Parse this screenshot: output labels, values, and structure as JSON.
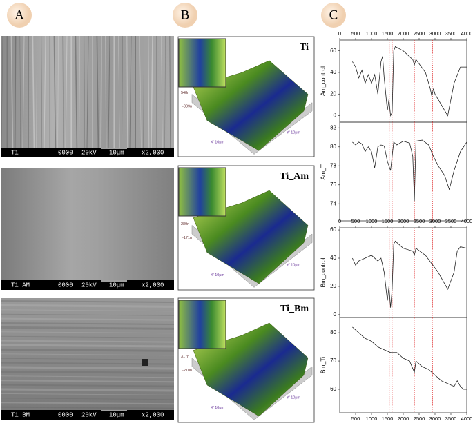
{
  "labels": [
    "A",
    "B",
    "C"
  ],
  "sem": [
    {
      "sample": "Ti",
      "code": "0000",
      "voltage": "20kV",
      "scale": "10μm",
      "magnification": "x2,000"
    },
    {
      "sample": "Ti AM",
      "code": "0000",
      "voltage": "20kV",
      "scale": "10μm",
      "magnification": "x2,000"
    },
    {
      "sample": "Ti BM",
      "code": "0000",
      "voltage": "20kV",
      "scale": "10μm",
      "magnification": "x2,000"
    }
  ],
  "afm": [
    {
      "title": "Ti",
      "z_max": "548n",
      "z_min": "-389n",
      "x_axis": "X' 10μm",
      "y_axis": "Y' 10μm"
    },
    {
      "title": "Ti_Am",
      "z_max": "289n",
      "z_min": "-171n",
      "x_axis": "X' 10μm",
      "y_axis": "Y' 10μm"
    },
    {
      "title": "Ti_Bm",
      "z_max": "317n",
      "z_min": "-210n",
      "x_axis": "X' 10μm",
      "y_axis": "Y' 10μm"
    }
  ],
  "chart_data": [
    {
      "type": "line",
      "y_label": "Am_control",
      "color": "#222222",
      "ref_color": "#e03030",
      "ref_lines": [
        1560,
        1650,
        2350,
        2920
      ],
      "xaxis": "top",
      "xlim": [
        0,
        4000
      ],
      "xticks": [
        0,
        500,
        1000,
        1500,
        2000,
        2500,
        3000,
        3500,
        4000
      ],
      "ylim": [
        -6,
        70
      ],
      "yticks": [
        0,
        20,
        40,
        60
      ],
      "x": [
        400,
        500,
        600,
        700,
        800,
        900,
        1000,
        1100,
        1200,
        1300,
        1350,
        1400,
        1450,
        1500,
        1550,
        1600,
        1650,
        1700,
        1750,
        2000,
        2300,
        2350,
        2400,
        2700,
        2850,
        2900,
        2950,
        3000,
        3200,
        3400,
        3600,
        3800,
        4000
      ],
      "values": [
        50,
        45,
        35,
        42,
        30,
        38,
        30,
        38,
        20,
        50,
        55,
        35,
        20,
        5,
        15,
        0,
        3,
        60,
        64,
        60,
        52,
        47,
        52,
        40,
        25,
        18,
        25,
        20,
        10,
        0,
        30,
        45,
        45
      ]
    },
    {
      "type": "line",
      "y_label": "Am_Ti",
      "color": "#222222",
      "ref_color": "#e03030",
      "ref_lines": [
        1560,
        1650,
        2350,
        2920
      ],
      "xlim": [
        0,
        4000
      ],
      "ylim": [
        72.2,
        82.6
      ],
      "yticks": [
        74,
        76,
        78,
        80,
        82
      ],
      "x": [
        400,
        500,
        600,
        700,
        800,
        900,
        1000,
        1100,
        1200,
        1300,
        1400,
        1500,
        1600,
        1700,
        1800,
        2000,
        2200,
        2300,
        2350,
        2400,
        2600,
        2800,
        2950,
        3100,
        3300,
        3450,
        3600,
        3800,
        4000
      ],
      "values": [
        80.5,
        80.2,
        80.5,
        80.3,
        79.5,
        80,
        79.5,
        77.8,
        80,
        80.2,
        80.1,
        78.5,
        77.5,
        80.5,
        80.2,
        80.6,
        80.4,
        79,
        74.3,
        80.6,
        80.7,
        80.2,
        79,
        78,
        77,
        75.5,
        77.5,
        79.5,
        80.5
      ]
    },
    {
      "type": "line",
      "y_label": "Bm_control",
      "color": "#222222",
      "ref_color": "#e03030",
      "ref_lines": [
        1560,
        1650,
        2350,
        2920
      ],
      "xaxis": "top",
      "xlim": [
        0,
        4000
      ],
      "xticks": [
        0,
        500,
        1000,
        1500,
        2000,
        2500,
        3000,
        3500,
        4000
      ],
      "ylim": [
        -2,
        61.5
      ],
      "yticks": [
        0,
        20,
        40,
        60
      ],
      "x": [
        400,
        500,
        600,
        800,
        1000,
        1200,
        1300,
        1400,
        1500,
        1550,
        1600,
        1650,
        1700,
        1750,
        2000,
        2300,
        2350,
        2400,
        2700,
        2900,
        3100,
        3300,
        3400,
        3600,
        3700,
        3800,
        4000
      ],
      "values": [
        40,
        35,
        38,
        40,
        42,
        38,
        40,
        30,
        10,
        20,
        5,
        18,
        50,
        52,
        47,
        45,
        42,
        47,
        42,
        36,
        30,
        22,
        18,
        30,
        45,
        48,
        47
      ]
    },
    {
      "type": "line",
      "y_label": "Bm_Ti",
      "color": "#222222",
      "ref_color": "#e03030",
      "ref_lines": [
        1560,
        1650,
        2350,
        2920
      ],
      "xaxis": "bottom",
      "xlim": [
        0,
        4000
      ],
      "xticks": [
        500,
        1000,
        1500,
        2000,
        2500,
        3000,
        3500,
        4000
      ],
      "ylim": [
        51.7,
        85.4
      ],
      "yticks": [
        60,
        70,
        80
      ],
      "x": [
        400,
        600,
        800,
        1000,
        1200,
        1400,
        1600,
        1800,
        2000,
        2200,
        2350,
        2400,
        2600,
        2800,
        3000,
        3200,
        3400,
        3600,
        3700,
        3800,
        3900,
        4000
      ],
      "values": [
        82,
        80,
        78,
        77,
        75,
        74,
        73,
        73,
        71,
        70,
        66,
        70,
        68,
        67,
        65,
        63,
        62,
        61,
        63,
        61,
        60,
        60
      ]
    }
  ]
}
